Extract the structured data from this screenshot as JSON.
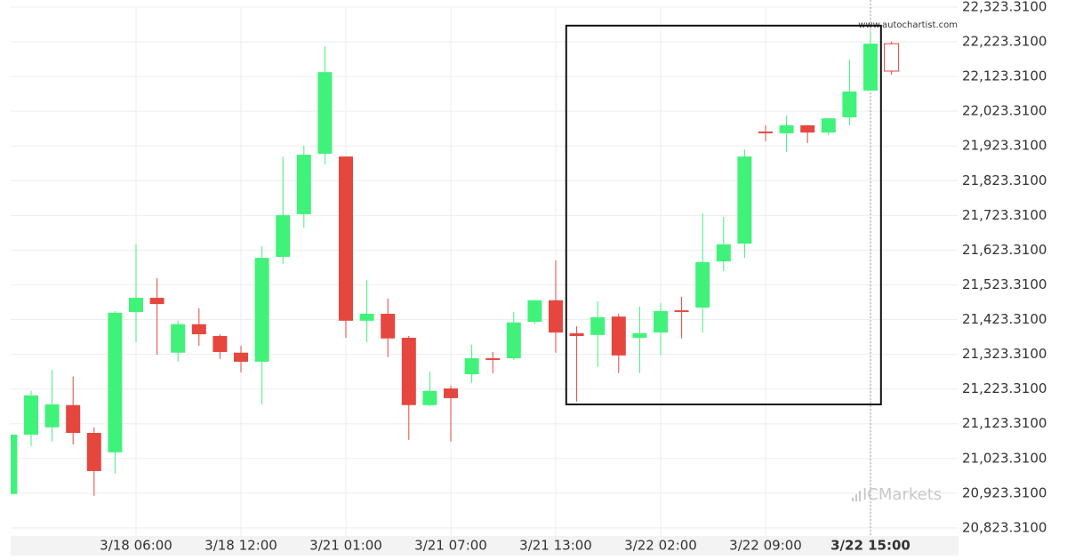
{
  "chart_data": {
    "type": "candlestick",
    "categories": [
      null,
      null,
      null,
      null,
      null,
      null,
      "3/18 06:00",
      null,
      null,
      null,
      null,
      "3/18 12:00",
      null,
      null,
      null,
      null,
      "3/21 01:00",
      null,
      null,
      null,
      null,
      "3/21 07:00",
      null,
      null,
      null,
      null,
      "3/21 13:00",
      null,
      null,
      null,
      null,
      "3/22 02:00",
      null,
      null,
      null,
      null,
      "3/22 09:00",
      null,
      null,
      null,
      null,
      "3/22 15:00",
      null
    ],
    "open": [
      20921,
      21092,
      21113,
      21177,
      21097,
      21041,
      21445,
      21486,
      21328,
      21410,
      21376,
      21328,
      21302,
      21604,
      21727,
      21901,
      21893,
      21420,
      21440,
      21371,
      21177,
      21225,
      21266,
      21312,
      21312,
      21417,
      21479,
      21384,
      21379,
      21432,
      21371,
      21386,
      21450,
      21458,
      21591,
      21642,
      21965,
      21960,
      21983,
      21962,
      22006,
      22083,
      22218
    ],
    "high": [
      21092,
      21218,
      21279,
      21259,
      21113,
      21448,
      21640,
      21543,
      21420,
      21456,
      21381,
      21348,
      21635,
      21893,
      21924,
      22211,
      21893,
      21537,
      21484,
      21376,
      21274,
      21233,
      21351,
      21330,
      21445,
      21479,
      21594,
      21404,
      21476,
      21440,
      21461,
      21471,
      21489,
      21729,
      21719,
      21914,
      21983,
      22011,
      21983,
      22003,
      22172,
      22254,
      22224
    ],
    "low": [
      20921,
      21059,
      21072,
      21064,
      20916,
      20980,
      21358,
      21322,
      21302,
      21348,
      21310,
      21271,
      21179,
      21584,
      21688,
      21870,
      21371,
      21358,
      21315,
      21077,
      21174,
      21072,
      21241,
      21269,
      21307,
      21410,
      21328,
      21187,
      21287,
      21269,
      21269,
      21320,
      21369,
      21386,
      21563,
      21601,
      21937,
      21906,
      21932,
      21955,
      21983,
      22083,
      22129
    ],
    "close": [
      21092,
      21205,
      21179,
      21097,
      20987,
      21443,
      21486,
      21468,
      21410,
      21381,
      21330,
      21302,
      21601,
      21724,
      21898,
      22136,
      21420,
      21440,
      21369,
      21177,
      21218,
      21197,
      21312,
      21307,
      21415,
      21479,
      21386,
      21376,
      21430,
      21320,
      21384,
      21448,
      21445,
      21589,
      21640,
      21893,
      21960,
      21983,
      21962,
      22003,
      22080,
      22218,
      22139
    ],
    "up_color": "#41f27a",
    "down_color": "#e5473f",
    "ylim": [
      20800,
      22323.31
    ],
    "yticks": [
      {
        "value": 20823.31,
        "label": "20,823.3100"
      },
      {
        "value": 20923.31,
        "label": "20,923.3100"
      },
      {
        "value": 21023.31,
        "label": "21,023.3100"
      },
      {
        "value": 21123.31,
        "label": "21,123.3100"
      },
      {
        "value": 21223.31,
        "label": "21,223.3100"
      },
      {
        "value": 21323.31,
        "label": "21,323.3100"
      },
      {
        "value": 21423.31,
        "label": "21,423.3100"
      },
      {
        "value": 21523.31,
        "label": "21,523.3100"
      },
      {
        "value": 21623.31,
        "label": "21,623.3100"
      },
      {
        "value": 21723.31,
        "label": "21,723.3100"
      },
      {
        "value": 21823.31,
        "label": "21,823.3100"
      },
      {
        "value": 21923.31,
        "label": "21,923.3100"
      },
      {
        "value": 22023.31,
        "label": "22,023.3100"
      },
      {
        "value": 22123.31,
        "label": "22,123.3100"
      },
      {
        "value": 22223.31,
        "label": "22,223.3100"
      },
      {
        "value": 22323.31,
        "label": "22,323.3100"
      }
    ],
    "grid": true,
    "annotation_box": {
      "x": [
        26.5,
        41.5
      ],
      "y": [
        21179,
        22270
      ]
    },
    "watermark": "www.autochartist.com",
    "logo": "ICMarkets"
  }
}
